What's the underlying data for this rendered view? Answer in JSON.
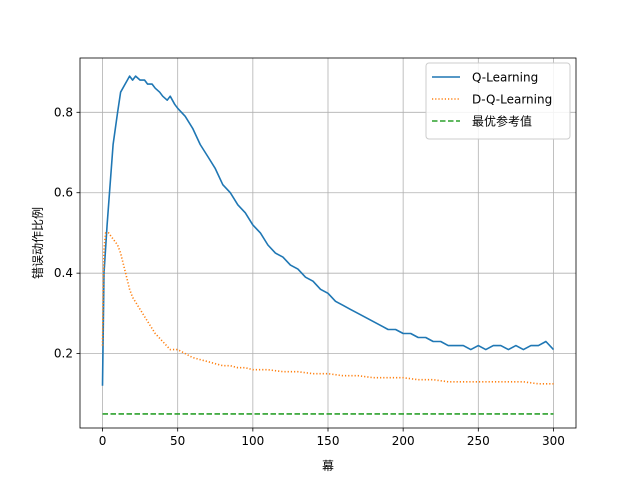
{
  "chart_data": {
    "type": "line",
    "xlabel": "幕",
    "ylabel": "错误动作比例",
    "xlim": [
      -15,
      315
    ],
    "ylim": [
      0.015,
      0.935
    ],
    "xticks": [
      0,
      50,
      100,
      150,
      200,
      250,
      300
    ],
    "yticks": [
      0.2,
      0.4,
      0.6,
      0.8
    ],
    "grid": true,
    "legend_position": "top-right",
    "series": [
      {
        "name": "Q-Learning",
        "color": "#1f77b4",
        "style": "solid",
        "x": [
          0,
          1,
          3,
          5,
          7,
          10,
          12,
          15,
          18,
          20,
          22,
          25,
          28,
          30,
          33,
          35,
          38,
          40,
          43,
          45,
          48,
          50,
          55,
          60,
          65,
          70,
          75,
          80,
          85,
          90,
          95,
          100,
          105,
          110,
          115,
          120,
          125,
          130,
          135,
          140,
          145,
          150,
          155,
          160,
          165,
          170,
          175,
          180,
          185,
          190,
          195,
          200,
          205,
          210,
          215,
          220,
          225,
          230,
          235,
          240,
          245,
          250,
          255,
          260,
          265,
          270,
          275,
          280,
          285,
          290,
          295,
          300
        ],
        "values": [
          0.12,
          0.4,
          0.52,
          0.62,
          0.72,
          0.8,
          0.85,
          0.87,
          0.89,
          0.88,
          0.89,
          0.88,
          0.88,
          0.87,
          0.87,
          0.86,
          0.85,
          0.84,
          0.83,
          0.84,
          0.82,
          0.81,
          0.79,
          0.76,
          0.72,
          0.69,
          0.66,
          0.62,
          0.6,
          0.57,
          0.55,
          0.52,
          0.5,
          0.47,
          0.45,
          0.44,
          0.42,
          0.41,
          0.39,
          0.38,
          0.36,
          0.35,
          0.33,
          0.32,
          0.31,
          0.3,
          0.29,
          0.28,
          0.27,
          0.26,
          0.26,
          0.25,
          0.25,
          0.24,
          0.24,
          0.23,
          0.23,
          0.22,
          0.22,
          0.22,
          0.21,
          0.22,
          0.21,
          0.22,
          0.22,
          0.21,
          0.22,
          0.21,
          0.22,
          0.22,
          0.23,
          0.21
        ]
      },
      {
        "name": "D-Q-Learning",
        "color": "#ff7f0e",
        "style": "dotted",
        "x": [
          0,
          1,
          2,
          4,
          6,
          8,
          10,
          12,
          14,
          16,
          18,
          20,
          25,
          30,
          35,
          40,
          45,
          50,
          55,
          60,
          65,
          70,
          75,
          80,
          85,
          90,
          95,
          100,
          110,
          120,
          130,
          140,
          150,
          160,
          170,
          180,
          190,
          200,
          210,
          220,
          230,
          240,
          250,
          260,
          270,
          280,
          290,
          300
        ],
        "values": [
          0.22,
          0.46,
          0.5,
          0.5,
          0.49,
          0.48,
          0.47,
          0.45,
          0.42,
          0.39,
          0.36,
          0.34,
          0.31,
          0.28,
          0.25,
          0.23,
          0.21,
          0.21,
          0.2,
          0.19,
          0.185,
          0.18,
          0.175,
          0.17,
          0.17,
          0.165,
          0.165,
          0.16,
          0.16,
          0.155,
          0.155,
          0.15,
          0.15,
          0.145,
          0.145,
          0.14,
          0.14,
          0.14,
          0.135,
          0.135,
          0.13,
          0.13,
          0.13,
          0.13,
          0.13,
          0.13,
          0.125,
          0.125
        ]
      },
      {
        "name": "最优参考值",
        "color": "#2ca02c",
        "style": "dashed",
        "x": [
          0,
          300
        ],
        "values": [
          0.05,
          0.05
        ]
      }
    ]
  }
}
